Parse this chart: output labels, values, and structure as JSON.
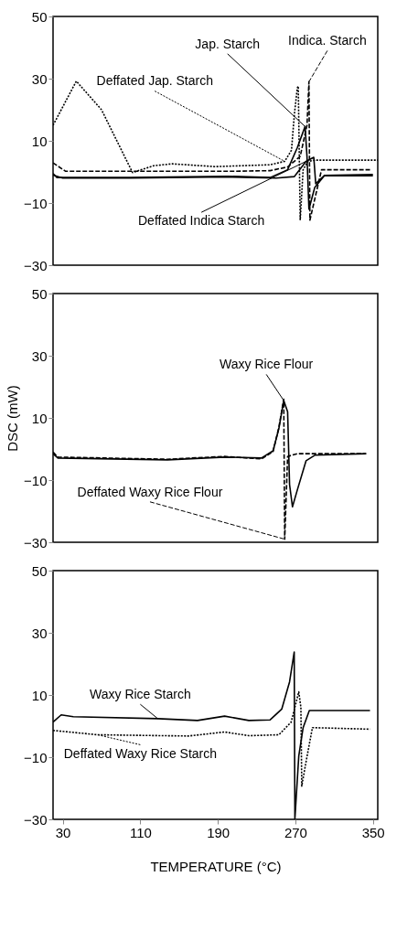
{
  "chart_data": [
    {
      "type": "line",
      "xlim": [
        20,
        355
      ],
      "ylim": [
        -30,
        50
      ],
      "yticks": [
        -30,
        -10,
        10,
        30,
        50
      ],
      "tick_labels": "y",
      "grid": false,
      "series": [
        {
          "name": "Deffated Jap. Starch",
          "color": "#000000",
          "line_style": "dotted",
          "x": [
            20,
            44,
            70,
            102,
            124,
            143,
            187,
            244,
            259,
            266,
            269,
            272,
            273,
            275,
            278,
            283,
            291,
            355
          ],
          "values": [
            15,
            29.2,
            20,
            -0.2,
            2,
            2.6,
            1.7,
            2.3,
            3.4,
            7,
            18.6,
            27,
            27.6,
            -15.5,
            0.7,
            3.4,
            3.8,
            3.8
          ]
        },
        {
          "name": "Indica. Starch",
          "color": "#000000",
          "line_style": "dashed",
          "x": [
            20,
            33,
            100,
            200,
            244,
            262,
            275,
            282,
            284,
            285,
            297,
            347
          ],
          "values": [
            2.9,
            0.2,
            0.2,
            0.2,
            0.4,
            1.6,
            5,
            15,
            29,
            -15.5,
            0.7,
            0.7
          ]
        },
        {
          "name": "Jap. Starch",
          "color": "#000000",
          "line_style": "solid",
          "x": [
            20,
            24,
            100,
            200,
            244,
            262,
            272,
            280,
            282,
            284,
            290,
            300,
            350
          ],
          "values": [
            -0.5,
            -1.8,
            -1.8,
            -1.4,
            -1.8,
            0.7,
            7.8,
            14.6,
            5,
            -12,
            -5,
            -1.2,
            -1.2
          ]
        },
        {
          "name": "Deffated  Indica Starch",
          "color": "#000000",
          "line_style": "solid",
          "x": [
            20,
            30,
            100,
            200,
            250,
            269,
            281,
            289,
            291,
            300,
            350
          ],
          "values": [
            -1,
            -2,
            -2,
            -1.6,
            -2,
            -1.5,
            3.4,
            4.7,
            -3.8,
            -1.1,
            -0.8
          ]
        }
      ]
    },
    {
      "type": "line",
      "xlim": [
        20,
        355
      ],
      "ylim": [
        -30,
        50
      ],
      "yticks": [
        -30,
        -10,
        10,
        30,
        50
      ],
      "ylabel": "DSC (mW)",
      "tick_labels": "y",
      "grid": false,
      "series": [
        {
          "name": "Waxy Rice Flour",
          "color": "#000000",
          "line_style": "solid",
          "x": [
            20,
            25,
            138,
            197,
            235,
            247,
            253,
            258,
            262,
            264,
            267,
            272,
            281,
            290,
            343
          ],
          "values": [
            -1.5,
            -2.9,
            -3.5,
            -2.6,
            -2.9,
            -0.6,
            6.6,
            15.6,
            12,
            -11.4,
            -18.6,
            -13.2,
            -3.8,
            -2,
            -1.5
          ]
        },
        {
          "name": "Deffated Waxy Rice Flour",
          "color": "#000000",
          "line_style": "dashed",
          "x": [
            20,
            25,
            138,
            197,
            235,
            247,
            253,
            258,
            259,
            262,
            272,
            343
          ],
          "values": [
            -1,
            -2.6,
            -3.3,
            -2.4,
            -3.2,
            -0.8,
            7,
            16,
            -29,
            -2.4,
            -1.5,
            -1.5
          ]
        }
      ]
    },
    {
      "type": "line",
      "xlim": [
        20,
        355
      ],
      "ylim": [
        -30,
        50
      ],
      "yticks": [
        -30,
        -10,
        10,
        30,
        50
      ],
      "xticks": [
        30,
        110,
        190,
        270,
        350
      ],
      "xlabel": "TEMPERATURE (°C)",
      "grid": false,
      "series": [
        {
          "name": "Waxy Rice Starch",
          "color": "#000000",
          "line_style": "solid",
          "x": [
            20,
            28.4,
            40.9,
            128,
            169,
            197,
            222,
            244,
            256,
            264,
            268.8,
            269.5,
            273.5,
            278,
            284.4,
            347
          ],
          "values": [
            1.3,
            3.6,
            3,
            2.4,
            1.8,
            3.2,
            1.8,
            2,
            5.5,
            14.2,
            23.8,
            -29.9,
            -9.7,
            -0.5,
            5,
            5
          ]
        },
        {
          "name": "Deffated Waxy Rice Starch",
          "color": "#000000",
          "line_style": "dotted",
          "x": [
            20,
            65.9,
            159.6,
            197,
            222,
            253,
            265.7,
            273.5,
            275.7,
            276.6,
            281,
            287.6,
            347
          ],
          "values": [
            -1.4,
            -2.8,
            -3.2,
            -1.9,
            -3.1,
            -2.8,
            1.3,
            11,
            6,
            -19.3,
            -11.5,
            -0.5,
            -1
          ]
        }
      ]
    }
  ]
}
